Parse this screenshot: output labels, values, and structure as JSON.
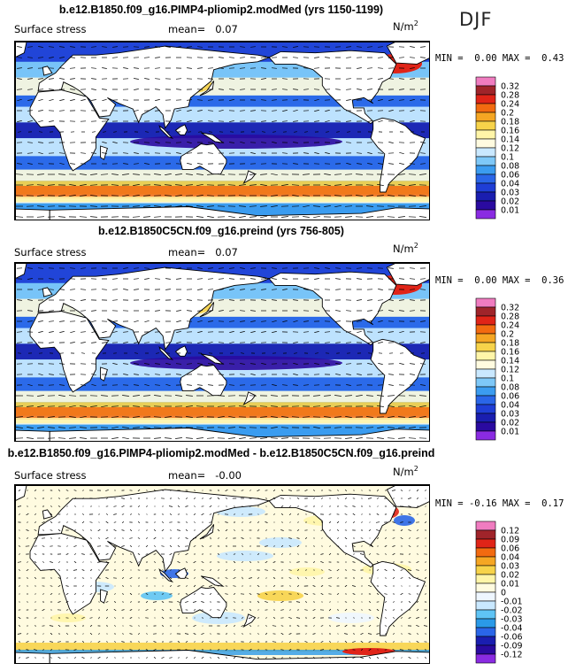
{
  "season_label": "DJF",
  "panels": [
    {
      "title": "b.e12.B1850.f09_g16.PIMP4-pliomip2.modMed (yrs 1150-1199)",
      "field": "Surface stress",
      "mean_label": "mean=",
      "mean_value": "0.07",
      "units": "N/m",
      "units_sup": "2",
      "min_label": "MIN =",
      "min_value": "0.00",
      "max_label": "MAX =",
      "max_value": "0.43",
      "kind": "magnitude"
    },
    {
      "title": "b.e12.B1850C5CN.f09_g16.preind (yrs 756-805)",
      "field": "Surface stress",
      "mean_label": "mean=",
      "mean_value": "0.07",
      "units": "N/m",
      "units_sup": "2",
      "min_label": "MIN =",
      "min_value": "0.00",
      "max_label": "MAX =",
      "max_value": "0.36",
      "kind": "magnitude"
    },
    {
      "title": "b.e12.B1850.f09_g16.PIMP4-pliomip2.modMed - b.e12.B1850C5CN.f09_g16.preind",
      "field": "Surface stress",
      "mean_label": "mean=",
      "mean_value": "-0.00",
      "units": "N/m",
      "units_sup": "2",
      "min_label": "MIN =",
      "min_value": "-0.16",
      "max_label": "MAX =",
      "max_value": "0.17",
      "kind": "difference"
    }
  ],
  "chart_data": [
    {
      "type": "heatmap",
      "title": "b.e12.B1850.f09_g16.PIMP4-pliomip2.modMed (yrs 1150-1199)",
      "variable": "Surface stress",
      "units": "N/m2",
      "season": "DJF",
      "mean": 0.07,
      "min": 0.0,
      "max": 0.43,
      "colorbar_levels": [
        "0.32",
        "0.28",
        "0.24",
        "0.2",
        "0.18",
        "0.16",
        "0.14",
        "0.12",
        "0.1",
        "0.08",
        "0.06",
        "0.04",
        "0.03",
        "0.02",
        "0.01"
      ],
      "colorbar_colors": [
        "#f07cc0",
        "#a0242a",
        "#e02418",
        "#f26a10",
        "#f5a623",
        "#f7d34a",
        "#fff5a8",
        "#fffbe0",
        "#c9e8ff",
        "#7ec8f8",
        "#3b9cf0",
        "#2a66e8",
        "#1f3ed6",
        "#1a1eb0",
        "#2a0aa0",
        "#8a2be2"
      ]
    },
    {
      "type": "heatmap",
      "title": "b.e12.B1850C5CN.f09_g16.preind (yrs 756-805)",
      "variable": "Surface stress",
      "units": "N/m2",
      "season": "DJF",
      "mean": 0.07,
      "min": 0.0,
      "max": 0.36,
      "colorbar_levels": [
        "0.32",
        "0.28",
        "0.24",
        "0.2",
        "0.18",
        "0.16",
        "0.14",
        "0.12",
        "0.1",
        "0.08",
        "0.06",
        "0.04",
        "0.03",
        "0.02",
        "0.01"
      ],
      "colorbar_colors": [
        "#f07cc0",
        "#a0242a",
        "#e02418",
        "#f26a10",
        "#f5a623",
        "#f7d34a",
        "#fff5a8",
        "#fffbe0",
        "#c9e8ff",
        "#7ec8f8",
        "#3b9cf0",
        "#2a66e8",
        "#1f3ed6",
        "#1a1eb0",
        "#2a0aa0",
        "#8a2be2"
      ]
    },
    {
      "type": "heatmap",
      "title": "b.e12.B1850.f09_g16.PIMP4-pliomip2.modMed - b.e12.B1850C5CN.f09_g16.preind",
      "variable": "Surface stress",
      "units": "N/m2",
      "season": "DJF",
      "mean": -0.0,
      "min": -0.16,
      "max": 0.17,
      "colorbar_levels": [
        "0.12",
        "0.09",
        "0.06",
        "0.04",
        "0.03",
        "0.02",
        "0.01",
        "0",
        "-0.01",
        "-0.02",
        "-0.03",
        "-0.04",
        "-0.06",
        "-0.09",
        "-0.12"
      ],
      "colorbar_colors": [
        "#f07cc0",
        "#a0242a",
        "#e02418",
        "#f26a10",
        "#f5a623",
        "#f7d34a",
        "#fff5a8",
        "#fffbe0",
        "#eef6ff",
        "#c9e8ff",
        "#5fc4f5",
        "#2a9ae8",
        "#2a66e8",
        "#1a1eb0",
        "#2a0aa0",
        "#8a2be2"
      ]
    }
  ]
}
